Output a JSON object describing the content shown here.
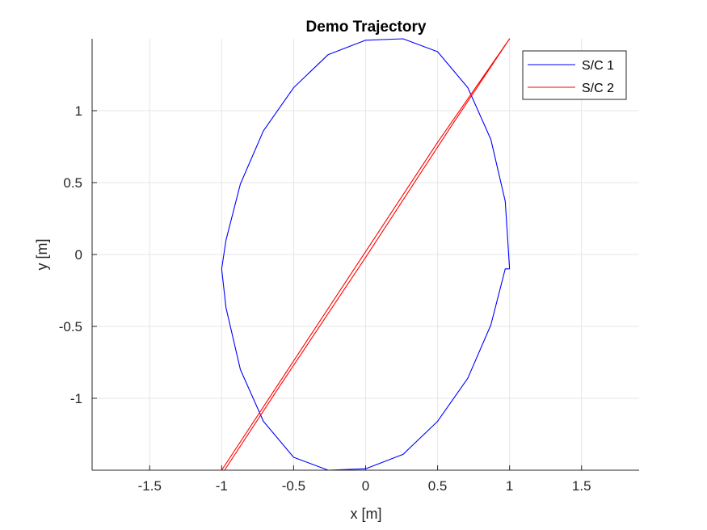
{
  "chart_data": {
    "type": "line",
    "title": "Demo Trajectory",
    "xlabel": "x [m]",
    "ylabel": "y [m]",
    "xlim": [
      -1.9,
      1.9
    ],
    "ylim": [
      -1.5,
      1.5
    ],
    "xticks": [
      -1.5,
      -1,
      -0.5,
      0,
      0.5,
      1,
      1.5
    ],
    "yticks": [
      -1,
      -0.5,
      0,
      0.5,
      1
    ],
    "xtick_labels": [
      "-1.5",
      "-1",
      "-0.5",
      "0",
      "0.5",
      "1",
      "1.5"
    ],
    "ytick_labels": [
      "-1",
      "-0.5",
      "0",
      "0.5",
      "1"
    ],
    "grid": true,
    "legend_placement": "top-right",
    "series": [
      {
        "name": "S/C 1",
        "color": "#0000ff",
        "x": [
          1.0,
          0.97,
          0.87,
          0.71,
          0.5,
          0.26,
          0.0,
          -0.26,
          -0.5,
          -0.71,
          -0.87,
          -0.97,
          -1.0,
          -0.97,
          -0.87,
          -0.71,
          -0.5,
          -0.26,
          0.0,
          0.26,
          0.5,
          0.71,
          0.87,
          0.97,
          1.0
        ],
        "y": [
          -0.1,
          0.37,
          0.8,
          1.16,
          1.41,
          1.5,
          1.49,
          1.39,
          1.16,
          0.86,
          0.49,
          0.1,
          -0.1,
          -0.37,
          -0.8,
          -1.16,
          -1.41,
          -1.5,
          -1.49,
          -1.39,
          -1.16,
          -0.86,
          -0.49,
          -0.1,
          -0.1
        ]
      },
      {
        "name": "S/C 2",
        "color": "#ff0000",
        "x": [
          -1.0,
          -0.5,
          0.0,
          0.5,
          1.0,
          0.6,
          0.0,
          -0.6,
          -0.98
        ],
        "y": [
          -1.5,
          -0.74,
          0.02,
          0.78,
          1.5,
          0.9,
          -0.02,
          -0.92,
          -1.5
        ]
      }
    ]
  }
}
